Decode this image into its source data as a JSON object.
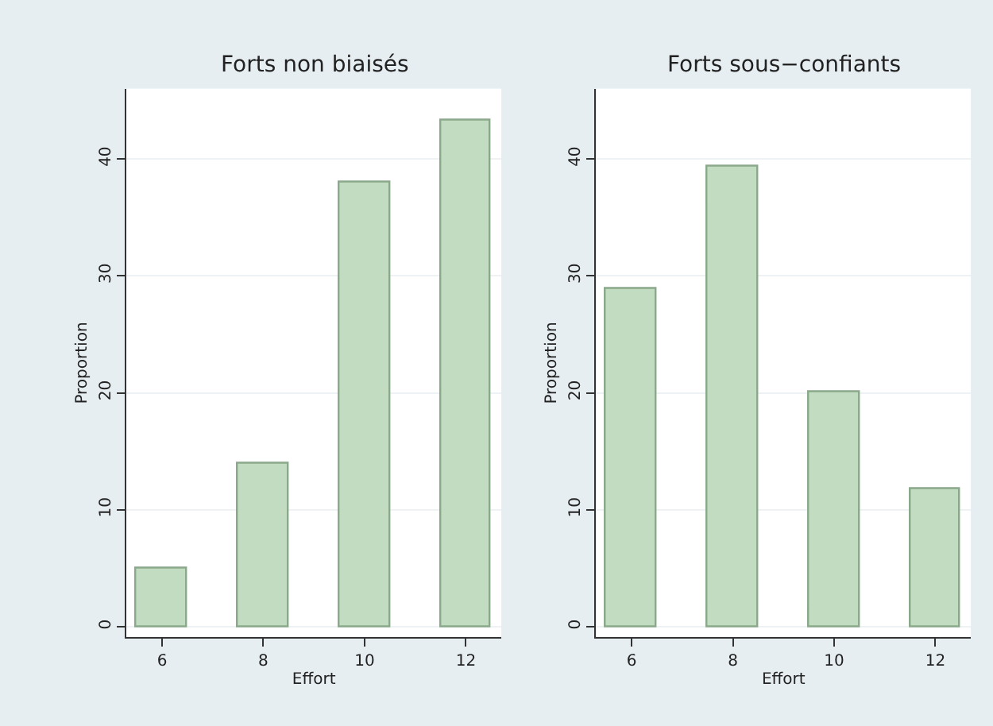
{
  "chart_data": [
    {
      "type": "bar",
      "title": "Forts non biaisés",
      "xlabel": "Effort",
      "ylabel": "Proportion",
      "x": [
        6,
        8,
        10,
        12
      ],
      "values": [
        5,
        14,
        38,
        43.3
      ],
      "color": "#c1dcc0",
      "xlim": [
        5.3,
        12.7
      ],
      "ylim": [
        -0.9,
        46
      ],
      "xticks": [
        6,
        8,
        10,
        12
      ],
      "yticks": [
        0,
        10,
        20,
        30,
        40
      ],
      "grid": "y"
    },
    {
      "type": "bar",
      "title": "Forts sous−confiants",
      "xlabel": "Effort",
      "ylabel": "Proportion",
      "x": [
        6,
        8,
        10,
        12
      ],
      "values": [
        28.9,
        39.3,
        20.1,
        11.7
      ],
      "color": "#c1dcc0",
      "xlim": [
        5.3,
        12.7
      ],
      "ylim": [
        -0.9,
        46
      ],
      "xticks": [
        6,
        8,
        10,
        12
      ],
      "yticks": [
        0,
        10,
        20,
        30,
        40
      ],
      "grid": "y"
    }
  ]
}
